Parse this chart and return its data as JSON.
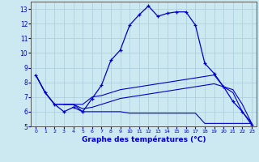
{
  "xlabel": "Graphe des températures (°C)",
  "background_color": "#cce8f0",
  "grid_color": "#aaccdd",
  "line_color": "#0000cc",
  "xlim": [
    -0.5,
    23.5
  ],
  "ylim": [
    5,
    13.5
  ],
  "xticks": [
    0,
    1,
    2,
    3,
    4,
    5,
    6,
    7,
    8,
    9,
    10,
    11,
    12,
    13,
    14,
    15,
    16,
    17,
    18,
    19,
    20,
    21,
    22,
    23
  ],
  "yticks": [
    5,
    6,
    7,
    8,
    9,
    10,
    11,
    12,
    13
  ],
  "line1_x": [
    0,
    1,
    2,
    3,
    4,
    5,
    6,
    7,
    8,
    9,
    10,
    11,
    12,
    13,
    14,
    15,
    16,
    17,
    18,
    19,
    20,
    21,
    22,
    23
  ],
  "line1_y": [
    8.5,
    7.3,
    6.5,
    6.0,
    6.3,
    6.0,
    6.9,
    7.8,
    9.5,
    10.2,
    11.9,
    12.6,
    13.2,
    12.5,
    12.7,
    12.8,
    12.8,
    11.9,
    9.3,
    8.6,
    7.7,
    6.7,
    6.0,
    5.1
  ],
  "line2_x": [
    0,
    1,
    2,
    3,
    4,
    5,
    6,
    7,
    8,
    9,
    10,
    11,
    12,
    13,
    14,
    15,
    16,
    17,
    18,
    19,
    20,
    21,
    22,
    23
  ],
  "line2_y": [
    8.5,
    7.3,
    6.5,
    6.5,
    6.5,
    6.5,
    7.0,
    7.1,
    7.3,
    7.5,
    7.6,
    7.7,
    7.8,
    7.9,
    8.0,
    8.1,
    8.2,
    8.3,
    8.4,
    8.5,
    7.7,
    7.5,
    6.5,
    5.2
  ],
  "line3_x": [
    0,
    1,
    2,
    3,
    4,
    5,
    6,
    7,
    8,
    9,
    10,
    11,
    12,
    13,
    14,
    15,
    16,
    17,
    18,
    19,
    20,
    21,
    22,
    23
  ],
  "line3_y": [
    8.5,
    7.3,
    6.5,
    6.5,
    6.5,
    6.2,
    6.3,
    6.5,
    6.7,
    6.9,
    7.0,
    7.1,
    7.2,
    7.3,
    7.4,
    7.5,
    7.6,
    7.7,
    7.8,
    7.9,
    7.7,
    7.3,
    6.0,
    5.2
  ],
  "line4_x": [
    3,
    4,
    5,
    6,
    7,
    8,
    9,
    10,
    11,
    12,
    13,
    14,
    15,
    16,
    17,
    18,
    19,
    20,
    21,
    22,
    23
  ],
  "line4_y": [
    6.5,
    6.5,
    6.0,
    6.0,
    6.0,
    6.0,
    6.0,
    5.9,
    5.9,
    5.9,
    5.9,
    5.9,
    5.9,
    5.9,
    5.9,
    5.2,
    5.2,
    5.2,
    5.2,
    5.2,
    5.2
  ]
}
